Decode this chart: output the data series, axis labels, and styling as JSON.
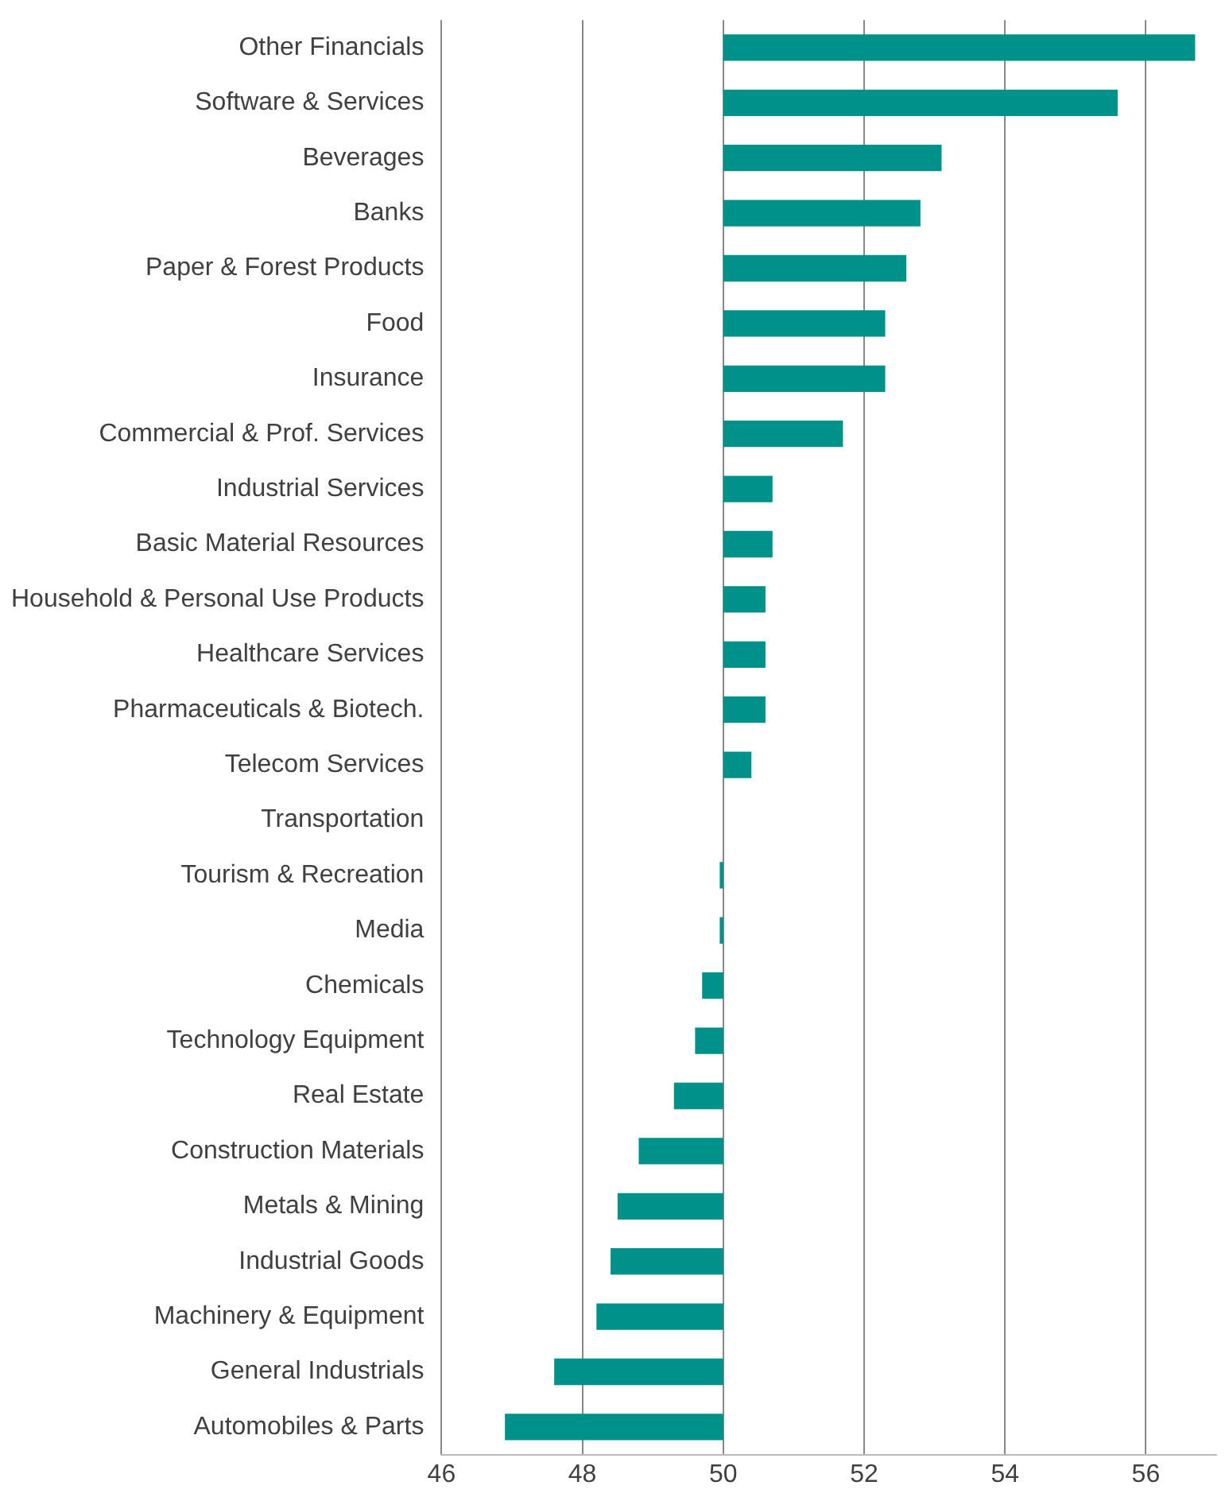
{
  "chart_data": {
    "type": "bar",
    "orientation": "horizontal",
    "categories": [
      "Other Financials",
      "Software & Services",
      "Beverages",
      "Banks",
      "Paper & Forest Products",
      "Food",
      "Insurance",
      "Commercial & Prof. Services",
      "Industrial Services",
      "Basic Material Resources",
      "Household & Personal Use Products",
      "Healthcare Services",
      "Pharmaceuticals & Biotech.",
      "Telecom Services",
      "Transportation",
      "Tourism & Recreation",
      "Media",
      "Chemicals",
      "Technology Equipment",
      "Real Estate",
      "Construction Materials",
      "Metals & Mining",
      "Industrial Goods",
      "Machinery & Equipment",
      "General Industrials",
      "Automobiles & Parts"
    ],
    "values": [
      6.7,
      5.6,
      3.1,
      2.8,
      2.6,
      2.3,
      2.3,
      1.7,
      0.7,
      0.7,
      0.6,
      0.6,
      0.6,
      0.4,
      null,
      -0.05,
      -0.05,
      -0.3,
      -0.4,
      -0.7,
      -1.2,
      -1.5,
      -1.6,
      -1.8,
      -2.4,
      -3.1
    ],
    "base": [
      50,
      50,
      50,
      50,
      50,
      50,
      50,
      50,
      50,
      50,
      50,
      50,
      50,
      50,
      null,
      50,
      50,
      50,
      50,
      50,
      50,
      50,
      50,
      50,
      50,
      50
    ],
    "color": "#00918a",
    "xlim": [
      46,
      57
    ],
    "xticks": [
      46,
      48,
      50,
      52,
      54,
      56
    ],
    "grid": "x",
    "legend": false
  }
}
